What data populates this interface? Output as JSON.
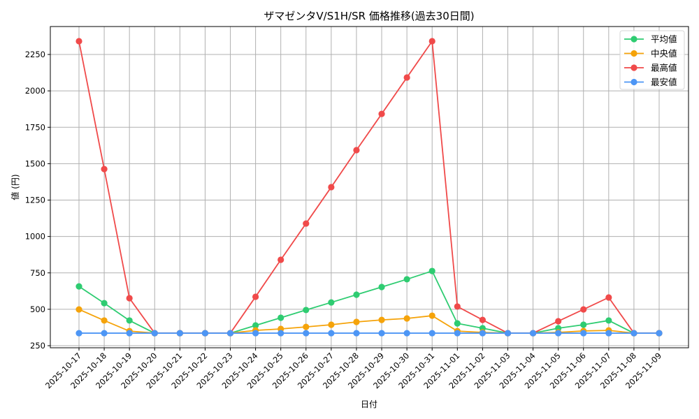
{
  "chart_data": {
    "type": "line",
    "title": "ザマゼンタV/S1H/SR 価格推移(過去30日間)",
    "xlabel": "日付",
    "ylabel": "値 (円)",
    "ylim": [
      240,
      2430
    ],
    "yticks": [
      250,
      500,
      750,
      1000,
      1250,
      1500,
      1750,
      2000,
      2250
    ],
    "grid": true,
    "legend_position": "upper right",
    "categories": [
      "2025-10-17",
      "2025-10-18",
      "2025-10-19",
      "2025-10-20",
      "2025-10-21",
      "2025-10-22",
      "2025-10-23",
      "2025-10-24",
      "2025-10-25",
      "2025-10-26",
      "2025-10-27",
      "2025-10-28",
      "2025-10-29",
      "2025-10-30",
      "2025-10-31",
      "2025-11-01",
      "2025-11-02",
      "2025-11-03",
      "2025-11-04",
      "2025-11-05",
      "2025-11-06",
      "2025-11-07",
      "2025-11-08",
      "2025-11-09"
    ],
    "series": [
      {
        "name": "平均値",
        "color": "#2ecc71",
        "values": [
          657,
          542,
          423,
          336,
          336,
          336,
          336,
          389,
          442,
          495,
          547,
          600,
          653,
          706,
          763,
          403,
          370,
          336,
          336,
          370,
          394,
          423,
          336,
          336
        ]
      },
      {
        "name": "中央値",
        "color": "#f5a30a",
        "values": [
          499,
          423,
          350,
          336,
          336,
          336,
          336,
          355,
          365,
          379,
          394,
          413,
          427,
          437,
          456,
          350,
          341,
          336,
          336,
          341,
          351,
          355,
          336,
          336
        ]
      },
      {
        "name": "最高値",
        "color": "#f04a4a",
        "values": [
          2341,
          1463,
          576,
          336,
          336,
          336,
          336,
          586,
          840,
          1089,
          1339,
          1593,
          1842,
          2092,
          2341,
          519,
          427,
          336,
          336,
          418,
          499,
          581,
          336,
          336
        ]
      },
      {
        "name": "最安値",
        "color": "#4d96f5",
        "values": [
          336,
          336,
          336,
          336,
          336,
          336,
          336,
          336,
          336,
          336,
          336,
          336,
          336,
          336,
          336,
          336,
          336,
          336,
          336,
          336,
          336,
          336,
          336,
          336
        ]
      }
    ]
  }
}
